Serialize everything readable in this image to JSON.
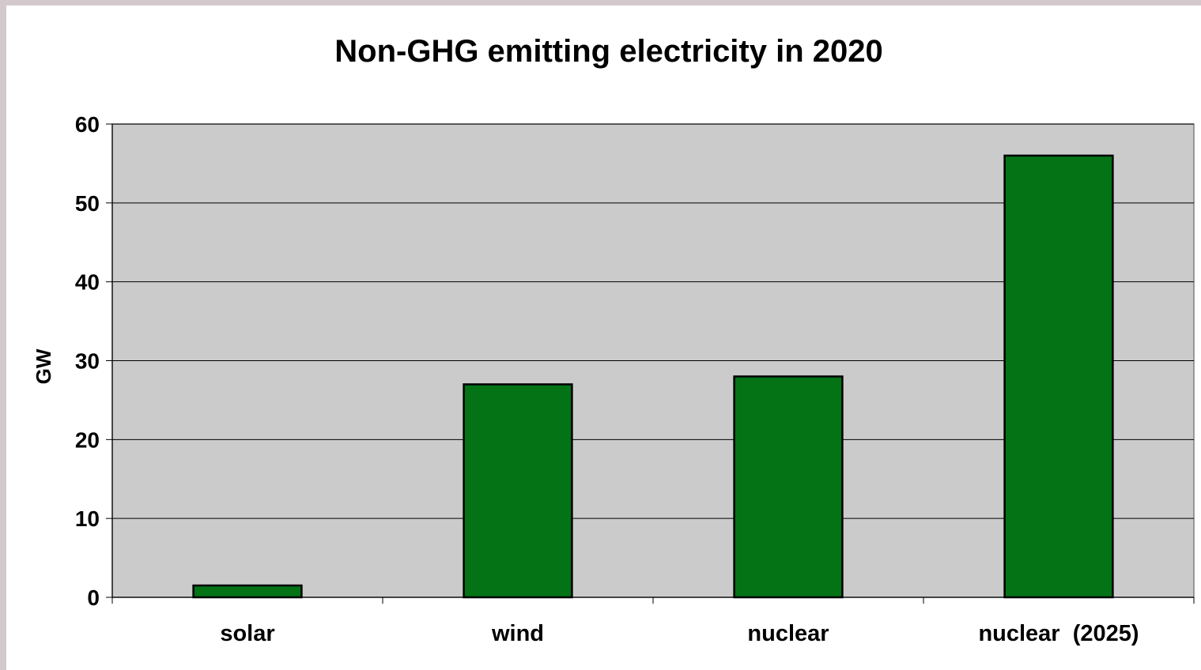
{
  "chart_data": {
    "type": "bar",
    "title": "Non-GHG emitting electricity in 2020",
    "xlabel": "",
    "ylabel": "GW",
    "categories": [
      "solar",
      "wind",
      "nuclear",
      "nuclear  (2025)"
    ],
    "values": [
      1.5,
      27,
      28,
      56
    ],
    "ylim": [
      0,
      60
    ],
    "yticks": [
      "0",
      "10",
      "20",
      "30",
      "40",
      "50",
      "60"
    ],
    "grid": true,
    "legend": "none",
    "colors": {
      "bar": "#037316",
      "plot_background": "#cbcbcb",
      "page_background": "#ffffff",
      "border": "#d3c9cc"
    }
  }
}
